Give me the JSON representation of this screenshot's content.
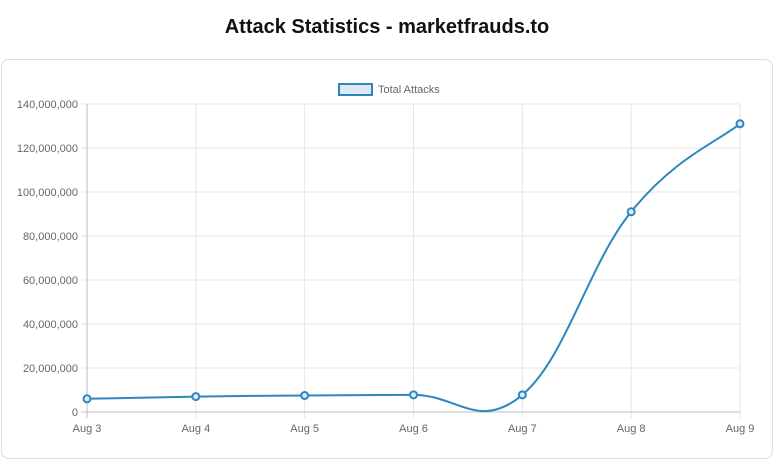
{
  "page": {
    "title": "Attack Statistics - marketfrauds.to"
  },
  "chart_data": {
    "type": "line",
    "x": [
      "Aug 3",
      "Aug 4",
      "Aug 5",
      "Aug 6",
      "Aug 7",
      "Aug 8",
      "Aug 9"
    ],
    "series": [
      {
        "name": "Total Attacks",
        "values": [
          6000000,
          7000000,
          7500000,
          7800000,
          7800000,
          91000000,
          131000000
        ],
        "color": "#2e86c1",
        "fill": "#dfe9f3"
      }
    ],
    "title": "",
    "xlabel": "",
    "ylabel": "",
    "ylim": [
      0,
      140000000
    ],
    "yticks": [
      0,
      20000000,
      40000000,
      60000000,
      80000000,
      100000000,
      120000000,
      140000000
    ],
    "ytick_labels": [
      "0",
      "20,000,000",
      "40,000,000",
      "60,000,000",
      "80,000,000",
      "100,000,000",
      "120,000,000",
      "140,000,000"
    ],
    "grid": true,
    "legend": "top-center",
    "gridColor": "#e6e6e6"
  }
}
